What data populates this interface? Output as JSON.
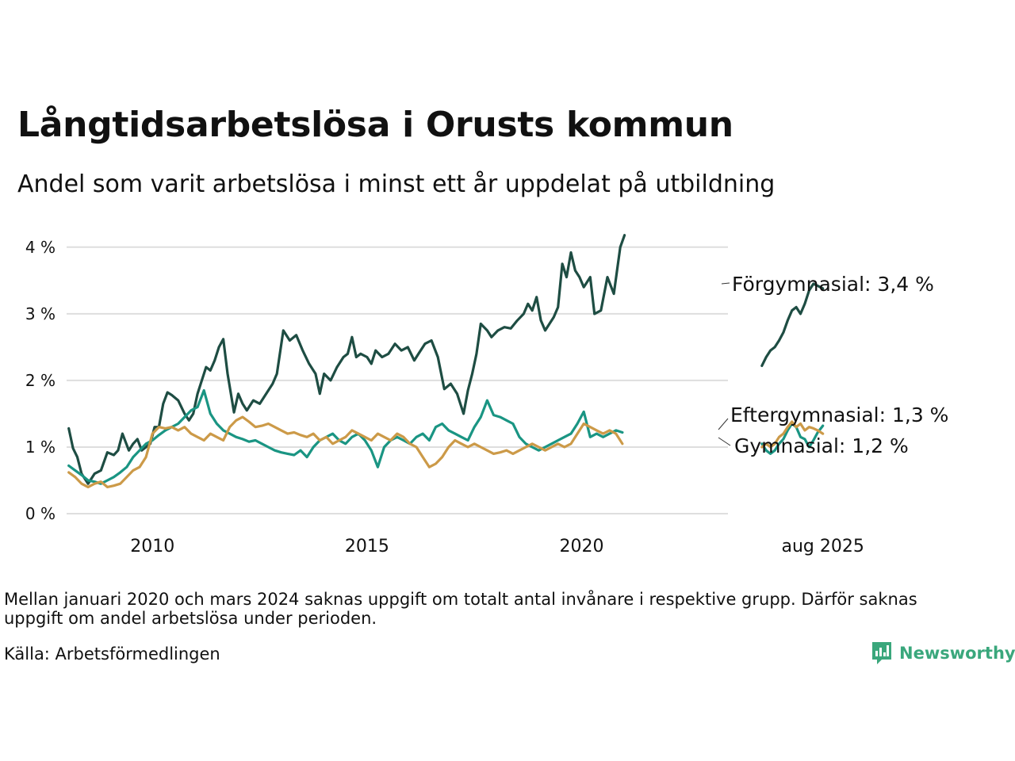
{
  "title": "Långtidsarbetslösa i Orusts kommun",
  "subtitle": "Andel som varit arbetslösa i minst ett år uppdelat på utbildning",
  "note": "Mellan januari 2020 och mars 2024 saknas uppgift om totalt antal invånare i respektive grupp. Därför saknas uppgift om andel arbetslösa under perioden.",
  "source": "Källa: Arbetsförmedlingen",
  "brand": "Newsworthy",
  "chart_data": {
    "type": "line",
    "title": "Långtidsarbetslösa i Orusts kommun",
    "subtitle": "Andel som varit arbetslösa i minst ett år uppdelat på utbildning",
    "xlabel": "",
    "ylabel": "",
    "x_unit": "year",
    "xlim": [
      2008.0,
      2025.7
    ],
    "ylim": [
      0,
      4.2
    ],
    "y_ticks": [
      0,
      1,
      2,
      3,
      4
    ],
    "y_tick_labels": [
      "0 %",
      "1 %",
      "2 %",
      "3 %",
      "4 %"
    ],
    "x_ticks": [
      2010,
      2015,
      2020,
      2025.62
    ],
    "x_tick_labels": [
      "2010",
      "2015",
      "2020",
      "aug 2025"
    ],
    "grid": "horizontal",
    "legend": "direct labels at line ends, right",
    "gap": [
      "2020-01",
      "2024-03"
    ],
    "series": [
      {
        "name": "Förgymnasial",
        "end_label": "Förgymnasial: 3,4 %",
        "color": "#1e4d43",
        "segments": [
          {
            "x": [
              2008.05,
              2008.15,
              2008.25,
              2008.35,
              2008.5,
              2008.65,
              2008.8,
              2008.95,
              2009.1,
              2009.2,
              2009.3,
              2009.45,
              2009.55,
              2009.65,
              2009.75,
              2009.85,
              2009.95,
              2010.05,
              2010.15,
              2010.25,
              2010.35,
              2010.45,
              2010.6,
              2010.75,
              2010.85,
              2010.95,
              2011.05,
              2011.15,
              2011.25,
              2011.35,
              2011.45,
              2011.55,
              2011.65,
              2011.75,
              2011.9,
              2012.0,
              2012.1,
              2012.2,
              2012.35,
              2012.5,
              2012.6,
              2012.7,
              2012.8,
              2012.9,
              2013.05,
              2013.2,
              2013.35,
              2013.5,
              2013.65,
              2013.8,
              2013.9,
              2014.0,
              2014.15,
              2014.3,
              2014.45,
              2014.55,
              2014.65,
              2014.75,
              2014.85,
              2015.0,
              2015.1,
              2015.2,
              2015.35,
              2015.5,
              2015.65,
              2015.8,
              2015.95,
              2016.1,
              2016.2,
              2016.35,
              2016.5,
              2016.65,
              2016.8,
              2016.95,
              2017.1,
              2017.25,
              2017.35,
              2017.45,
              2017.55,
              2017.65,
              2017.8,
              2017.9,
              2018.05,
              2018.2,
              2018.35,
              2018.5,
              2018.65,
              2018.75,
              2018.85,
              2018.95,
              2019.05,
              2019.15,
              2019.25,
              2019.35,
              2019.45,
              2019.55,
              2019.65,
              2019.75,
              2019.85,
              2019.95,
              2020.05,
              2020.2,
              2020.3,
              2020.45,
              2020.6,
              2020.75,
              2020.9,
              2021.0
            ],
            "y": [
              1.28,
              0.98,
              0.85,
              0.6,
              0.45,
              0.6,
              0.65,
              0.92,
              0.88,
              0.95,
              1.2,
              0.95,
              1.05,
              1.12,
              0.95,
              1.0,
              1.05,
              1.3,
              1.3,
              1.65,
              1.82,
              1.78,
              1.7,
              1.5,
              1.4,
              1.5,
              1.8,
              2.0,
              2.2,
              2.15,
              2.3,
              2.5,
              2.62,
              2.1,
              1.52,
              1.8,
              1.65,
              1.55,
              1.7,
              1.65,
              1.75,
              1.85,
              1.95,
              2.1,
              2.75,
              2.6,
              2.68,
              2.45,
              2.25,
              2.1,
              1.8,
              2.1,
              2.0,
              2.2,
              2.35,
              2.4,
              2.65,
              2.35,
              2.4,
              2.35,
              2.25,
              2.45,
              2.35,
              2.4,
              2.55,
              2.45,
              2.5,
              2.3,
              2.4,
              2.55,
              2.6,
              2.35,
              1.87,
              1.95,
              1.8,
              1.5,
              1.85,
              2.1,
              2.4,
              2.85,
              2.75,
              2.65,
              2.75,
              2.8,
              2.78,
              2.9,
              3.0,
              3.15,
              3.05,
              3.25,
              2.9,
              2.75,
              2.85,
              2.95,
              3.1,
              3.75,
              3.55,
              3.92,
              3.65,
              3.55,
              3.4,
              3.55,
              3.0,
              3.05,
              3.55,
              3.3,
              4.0,
              4.18
            ]
          },
          {
            "x": [
              2024.2,
              2024.3,
              2024.4,
              2024.5,
              2024.6,
              2024.7,
              2024.8,
              2024.9,
              2025.0,
              2025.1,
              2025.2,
              2025.3,
              2025.4,
              2025.5,
              2025.62
            ],
            "y": [
              2.22,
              2.35,
              2.45,
              2.5,
              2.6,
              2.72,
              2.9,
              3.05,
              3.1,
              3.0,
              3.15,
              3.35,
              3.45,
              3.42,
              3.38
            ]
          }
        ]
      },
      {
        "name": "Eftergymnasial",
        "end_label": "Eftergymnasial: 1,3 %",
        "color": "#1a9583",
        "segments": [
          {
            "x": [
              2008.05,
              2008.2,
              2008.35,
              2008.5,
              2008.65,
              2008.8,
              2008.95,
              2009.1,
              2009.25,
              2009.4,
              2009.55,
              2009.7,
              2009.85,
              2010.0,
              2010.15,
              2010.3,
              2010.45,
              2010.6,
              2010.75,
              2010.9,
              2011.05,
              2011.2,
              2011.35,
              2011.5,
              2011.65,
              2011.8,
              2011.95,
              2012.1,
              2012.25,
              2012.4,
              2012.55,
              2012.7,
              2012.85,
              2013.0,
              2013.15,
              2013.3,
              2013.45,
              2013.6,
              2013.75,
              2013.9,
              2014.05,
              2014.2,
              2014.35,
              2014.5,
              2014.65,
              2014.8,
              2014.95,
              2015.1,
              2015.25,
              2015.4,
              2015.55,
              2015.7,
              2015.85,
              2016.0,
              2016.15,
              2016.3,
              2016.45,
              2016.6,
              2016.75,
              2016.9,
              2017.05,
              2017.2,
              2017.35,
              2017.5,
              2017.65,
              2017.8,
              2017.95,
              2018.1,
              2018.25,
              2018.4,
              2018.55,
              2018.7,
              2018.85,
              2019.0,
              2019.15,
              2019.3,
              2019.45,
              2019.6,
              2019.75,
              2019.9,
              2020.05,
              2020.2,
              2020.35,
              2020.5,
              2020.65,
              2020.8,
              2020.95
            ],
            "y": [
              0.72,
              0.65,
              0.58,
              0.5,
              0.48,
              0.45,
              0.5,
              0.55,
              0.62,
              0.7,
              0.85,
              0.95,
              1.05,
              1.1,
              1.18,
              1.25,
              1.3,
              1.35,
              1.45,
              1.55,
              1.6,
              1.85,
              1.5,
              1.35,
              1.25,
              1.2,
              1.15,
              1.12,
              1.08,
              1.1,
              1.05,
              1.0,
              0.95,
              0.92,
              0.9,
              0.88,
              0.95,
              0.85,
              1.0,
              1.1,
              1.15,
              1.2,
              1.1,
              1.05,
              1.15,
              1.2,
              1.1,
              0.95,
              0.7,
              1.0,
              1.1,
              1.15,
              1.1,
              1.05,
              1.15,
              1.2,
              1.1,
              1.3,
              1.35,
              1.25,
              1.2,
              1.15,
              1.1,
              1.3,
              1.45,
              1.7,
              1.48,
              1.45,
              1.4,
              1.35,
              1.15,
              1.05,
              1.0,
              0.95,
              1.0,
              1.05,
              1.1,
              1.15,
              1.2,
              1.35,
              1.53,
              1.15,
              1.2,
              1.15,
              1.2,
              1.25,
              1.22
            ]
          },
          {
            "x": [
              2024.2,
              2024.3,
              2024.4,
              2024.5,
              2024.6,
              2024.7,
              2024.8,
              2024.9,
              2025.0,
              2025.1,
              2025.2,
              2025.3,
              2025.4,
              2025.5,
              2025.62
            ],
            "y": [
              1.05,
              0.95,
              0.9,
              0.95,
              1.05,
              1.12,
              1.25,
              1.35,
              1.3,
              1.15,
              1.12,
              1.0,
              1.1,
              1.22,
              1.32
            ]
          }
        ]
      },
      {
        "name": "Gymnasial",
        "end_label": "Gymnasial: 1,2 %",
        "color": "#cc9a48",
        "segments": [
          {
            "x": [
              2008.05,
              2008.2,
              2008.35,
              2008.5,
              2008.65,
              2008.8,
              2008.95,
              2009.1,
              2009.25,
              2009.4,
              2009.55,
              2009.7,
              2009.85,
              2010.0,
              2010.15,
              2010.3,
              2010.45,
              2010.6,
              2010.75,
              2010.9,
              2011.05,
              2011.2,
              2011.35,
              2011.5,
              2011.65,
              2011.8,
              2011.95,
              2012.1,
              2012.25,
              2012.4,
              2012.55,
              2012.7,
              2012.85,
              2013.0,
              2013.15,
              2013.3,
              2013.45,
              2013.6,
              2013.75,
              2013.9,
              2014.05,
              2014.2,
              2014.35,
              2014.5,
              2014.65,
              2014.8,
              2014.95,
              2015.1,
              2015.25,
              2015.4,
              2015.55,
              2015.7,
              2015.85,
              2016.0,
              2016.15,
              2016.3,
              2016.45,
              2016.6,
              2016.75,
              2016.9,
              2017.05,
              2017.2,
              2017.35,
              2017.5,
              2017.65,
              2017.8,
              2017.95,
              2018.1,
              2018.25,
              2018.4,
              2018.55,
              2018.7,
              2018.85,
              2019.0,
              2019.15,
              2019.3,
              2019.45,
              2019.6,
              2019.75,
              2019.9,
              2020.05,
              2020.2,
              2020.35,
              2020.5,
              2020.65,
              2020.8,
              2020.95
            ],
            "y": [
              0.62,
              0.55,
              0.45,
              0.4,
              0.45,
              0.48,
              0.4,
              0.42,
              0.45,
              0.55,
              0.65,
              0.7,
              0.85,
              1.2,
              1.3,
              1.28,
              1.3,
              1.25,
              1.3,
              1.2,
              1.15,
              1.1,
              1.2,
              1.15,
              1.1,
              1.3,
              1.4,
              1.45,
              1.38,
              1.3,
              1.32,
              1.35,
              1.3,
              1.25,
              1.2,
              1.22,
              1.18,
              1.15,
              1.2,
              1.1,
              1.15,
              1.05,
              1.1,
              1.15,
              1.25,
              1.2,
              1.15,
              1.1,
              1.2,
              1.15,
              1.1,
              1.2,
              1.15,
              1.05,
              1.0,
              0.85,
              0.7,
              0.75,
              0.85,
              1.0,
              1.1,
              1.05,
              1.0,
              1.05,
              1.0,
              0.95,
              0.9,
              0.92,
              0.95,
              0.9,
              0.95,
              1.0,
              1.05,
              1.0,
              0.95,
              1.0,
              1.05,
              1.0,
              1.05,
              1.2,
              1.35,
              1.3,
              1.25,
              1.2,
              1.25,
              1.2,
              1.05
            ]
          },
          {
            "x": [
              2024.2,
              2024.3,
              2024.4,
              2024.5,
              2024.6,
              2024.7,
              2024.8,
              2024.9,
              2025.0,
              2025.1,
              2025.2,
              2025.3,
              2025.4,
              2025.5,
              2025.62
            ],
            "y": [
              1.0,
              1.05,
              1.0,
              1.05,
              1.15,
              1.2,
              1.3,
              1.38,
              1.3,
              1.35,
              1.25,
              1.3,
              1.28,
              1.25,
              1.2
            ]
          }
        ]
      }
    ]
  }
}
